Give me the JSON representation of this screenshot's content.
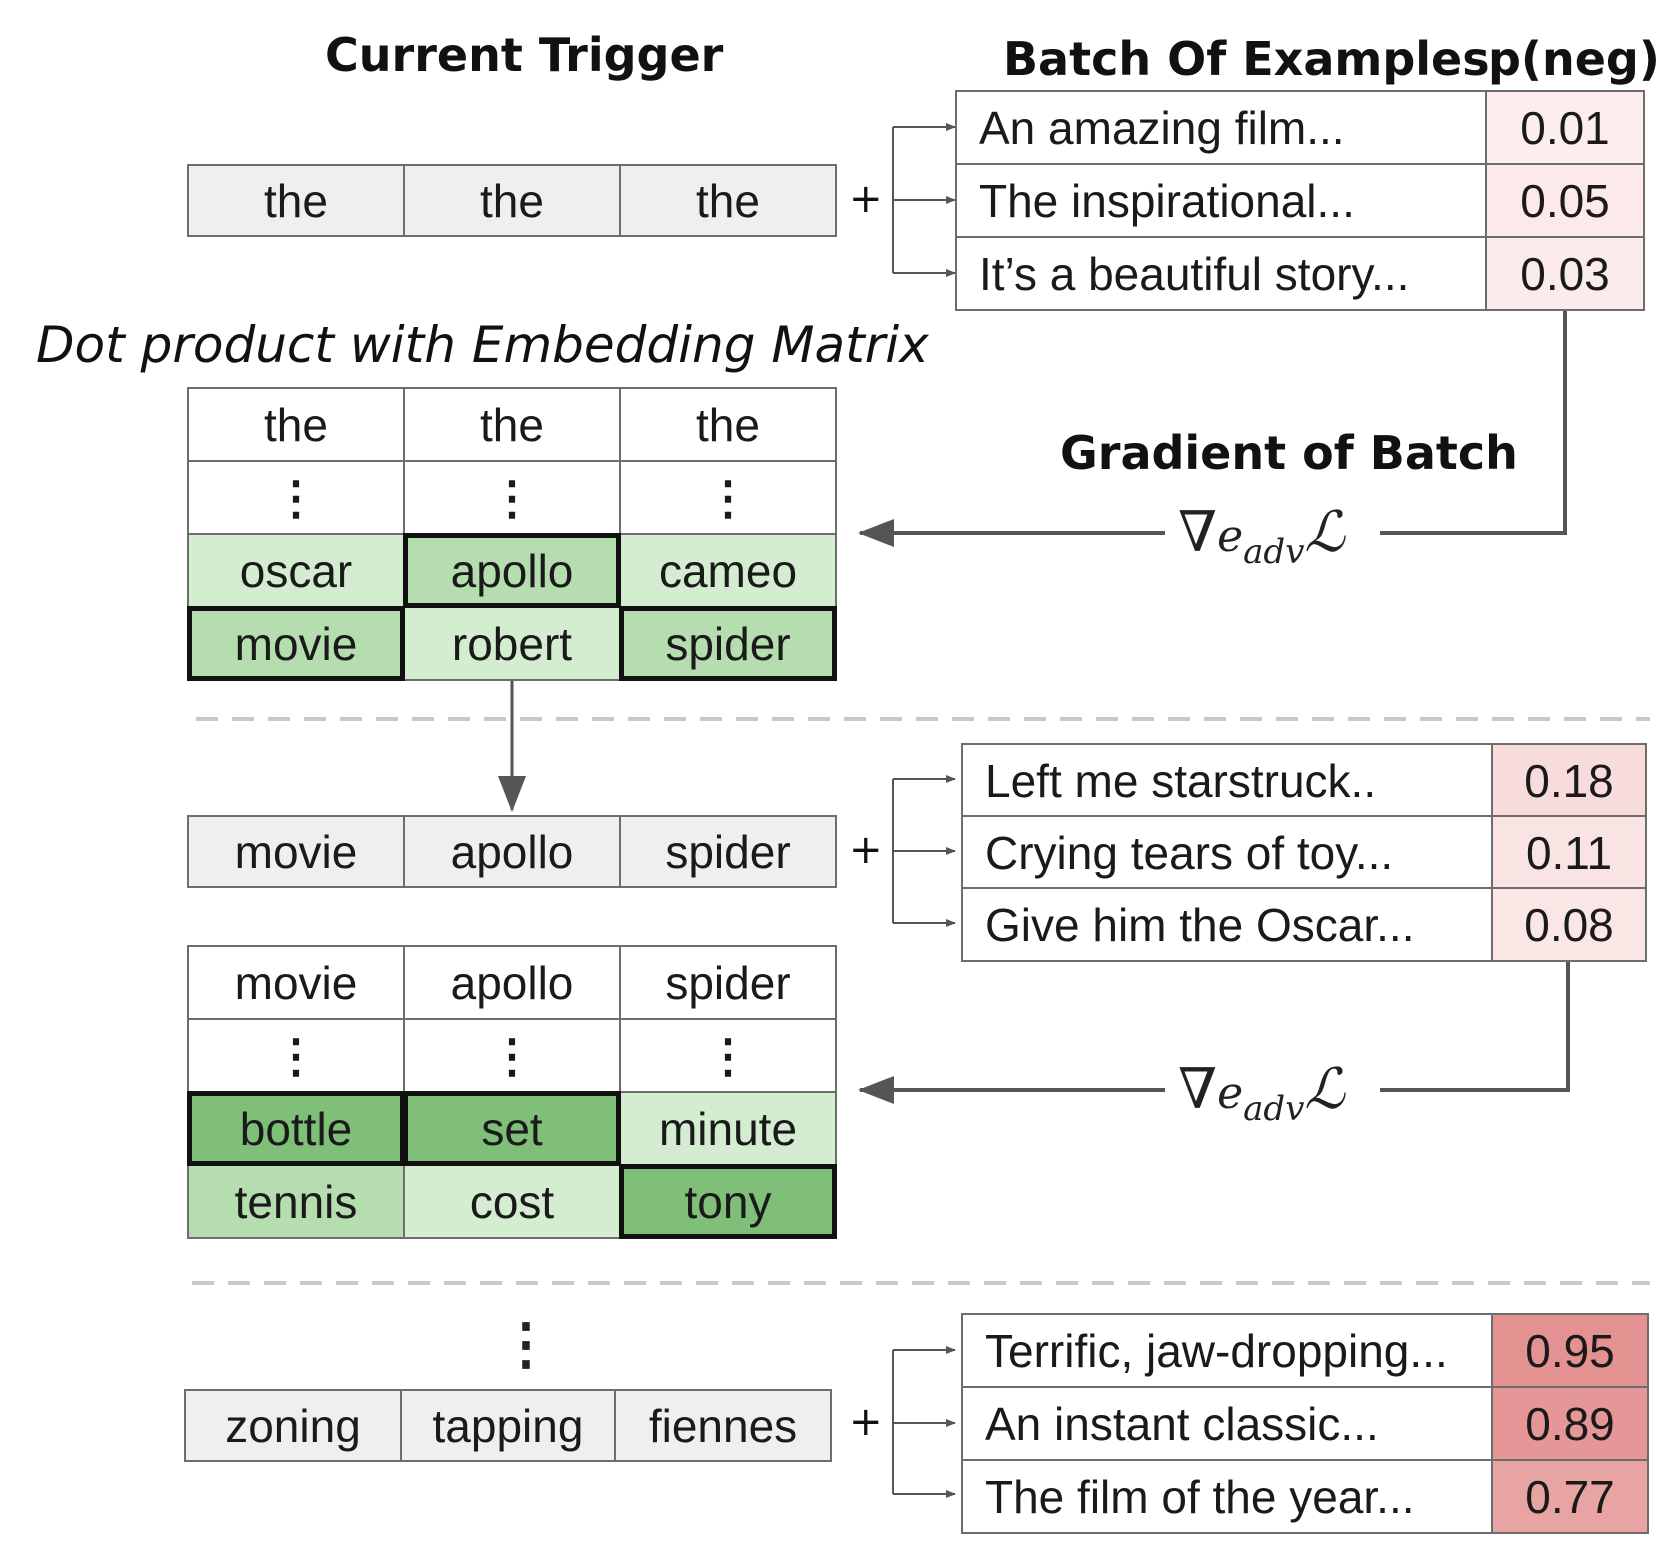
{
  "headers": {
    "current_trigger": "Current Trigger",
    "batch_of_examples": "Batch Of Examples",
    "p_neg": "p(neg)",
    "dot_product": "Dot product with Embedding Matrix",
    "gradient_of_batch": "Gradient of Batch"
  },
  "plus_sign": "+",
  "ellipsis_vertical": "⋮",
  "gradient_symbol": "∇",
  "gradient_subscript": "adv",
  "loss_symbol": "ℒ",
  "colors": {
    "light_green": "#d4ecd0",
    "mid_green": "#b6ddb0",
    "dark_green": "#7fbf78",
    "trigger_gray": "#efefef"
  },
  "step1": {
    "trigger": [
      "the",
      "the",
      "the"
    ],
    "examples": [
      {
        "text": "An amazing film...",
        "p": "0.01",
        "p_value": 0.01
      },
      {
        "text": "The inspirational...",
        "p": "0.05",
        "p_value": 0.05
      },
      {
        "text": "It’s a beautiful story...",
        "p": "0.03",
        "p_value": 0.03
      }
    ],
    "candidates": {
      "header": [
        "the",
        "the",
        "the"
      ],
      "row1": [
        "oscar",
        "apollo",
        "cameo"
      ],
      "row2": [
        "movie",
        "robert",
        "spider"
      ]
    }
  },
  "step2": {
    "trigger": [
      "movie",
      "apollo",
      "spider"
    ],
    "examples": [
      {
        "text": "Left me starstruck..",
        "p": "0.18",
        "p_value": 0.18
      },
      {
        "text": "Crying tears of toy...",
        "p": "0.11",
        "p_value": 0.11
      },
      {
        "text": "Give him the Oscar...",
        "p": "0.08",
        "p_value": 0.08
      }
    ],
    "candidates": {
      "header": [
        "movie",
        "apollo",
        "spider"
      ],
      "row1": [
        "bottle",
        "set",
        "minute"
      ],
      "row2": [
        "tennis",
        "cost",
        "tony"
      ]
    }
  },
  "final": {
    "trigger": [
      "zoning",
      "tapping",
      "fiennes"
    ],
    "examples": [
      {
        "text": "Terrific, jaw-dropping...",
        "p": "0.95",
        "p_value": 0.95
      },
      {
        "text": "An instant classic...",
        "p": "0.89",
        "p_value": 0.89
      },
      {
        "text": "The film of the year...",
        "p": "0.77",
        "p_value": 0.77
      }
    ]
  }
}
